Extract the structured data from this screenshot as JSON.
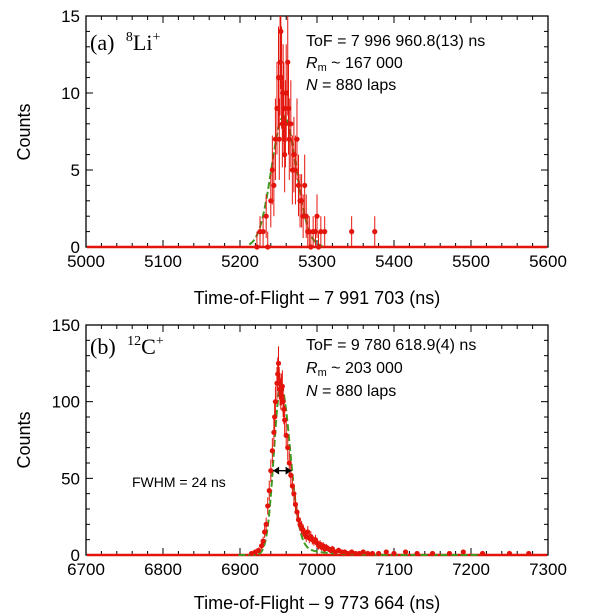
{
  "chart_data": [
    {
      "type": "scatter",
      "panel": "(a)",
      "isotope_mass": "8",
      "isotope_symbol": "Li",
      "isotope_charge": "+",
      "ylabel": "Counts",
      "xlabel": "Time-of-Flight – 7 991 703 (ns)",
      "xlim": [
        5000,
        5600
      ],
      "ylim": [
        0,
        15
      ],
      "xticks": [
        "5000",
        "5100",
        "5200",
        "5300",
        "5400",
        "5500",
        "5600"
      ],
      "yticks": [
        "0",
        "5",
        "10",
        "15"
      ],
      "info": {
        "tof": "ToF = 7 996 960.8(13) ns",
        "rm_symbol": "R",
        "rm_sub": "m",
        "rm_value": " ~ 167 000",
        "n_symbol": "N",
        "n_value": " = 880 laps"
      },
      "colors": {
        "points": "#e3140b",
        "fit": "#3d9a1f"
      },
      "fit": {
        "center": 5257,
        "sigma": 16,
        "amplitude": 8.5
      },
      "points": [
        [
          5222,
          0
        ],
        [
          5226,
          1
        ],
        [
          5230,
          1
        ],
        [
          5234,
          2
        ],
        [
          5236,
          0
        ],
        [
          5240,
          3
        ],
        [
          5242,
          5
        ],
        [
          5244,
          4
        ],
        [
          5246,
          7
        ],
        [
          5248,
          9
        ],
        [
          5250,
          11
        ],
        [
          5251,
          7
        ],
        [
          5252,
          12
        ],
        [
          5253,
          14
        ],
        [
          5254,
          11
        ],
        [
          5255,
          8
        ],
        [
          5256,
          10
        ],
        [
          5257,
          9
        ],
        [
          5258,
          6
        ],
        [
          5259,
          8
        ],
        [
          5260,
          10
        ],
        [
          5262,
          12
        ],
        [
          5263,
          9
        ],
        [
          5264,
          7
        ],
        [
          5266,
          8
        ],
        [
          5268,
          5
        ],
        [
          5270,
          6
        ],
        [
          5272,
          5
        ],
        [
          5274,
          7
        ],
        [
          5276,
          4
        ],
        [
          5278,
          3
        ],
        [
          5280,
          3
        ],
        [
          5282,
          2
        ],
        [
          5284,
          4
        ],
        [
          5286,
          2
        ],
        [
          5288,
          1
        ],
        [
          5290,
          1
        ],
        [
          5292,
          0
        ],
        [
          5295,
          1
        ],
        [
          5298,
          1
        ],
        [
          5300,
          2
        ],
        [
          5302,
          0
        ],
        [
          5305,
          1
        ],
        [
          5310,
          1
        ],
        [
          5345,
          1
        ],
        [
          5375,
          1
        ]
      ]
    },
    {
      "type": "scatter",
      "panel": "(b)",
      "isotope_mass": "12",
      "isotope_symbol": "C",
      "isotope_charge": "+",
      "ylabel": "Counts",
      "xlabel": "Time-of-Flight – 9 773 664 (ns)",
      "xlim": [
        6700,
        7300
      ],
      "ylim": [
        0,
        150
      ],
      "xticks": [
        "6700",
        "6800",
        "6900",
        "7000",
        "7100",
        "7200",
        "7300"
      ],
      "yticks": [
        "0",
        "50",
        "100",
        "150"
      ],
      "info": {
        "tof": "ToF = 9 780 618.9(4) ns",
        "rm_symbol": "R",
        "rm_sub": "m",
        "rm_value": " ~ 203 000",
        "n_symbol": "N",
        "n_value": " = 880 laps"
      },
      "annotation": "FWHM = 24 ns",
      "annotation_span": [
        6943,
        6967
      ],
      "annotation_y": 55,
      "colors": {
        "points": "#e3140b",
        "fit": "#3d9a1f"
      },
      "fit": {
        "center": 6953,
        "sigma_left": 9,
        "sigma_right": 12,
        "amplitude": 110,
        "tail_amplitude": 12,
        "tail_decay": 28
      },
      "points": [
        [
          6915,
          1
        ],
        [
          6920,
          2
        ],
        [
          6924,
          3
        ],
        [
          6928,
          6
        ],
        [
          6930,
          9
        ],
        [
          6932,
          15
        ],
        [
          6934,
          20
        ],
        [
          6936,
          32
        ],
        [
          6938,
          42
        ],
        [
          6940,
          55
        ],
        [
          6942,
          68
        ],
        [
          6944,
          80
        ],
        [
          6945,
          90
        ],
        [
          6946,
          100
        ],
        [
          6948,
          112
        ],
        [
          6949,
          118
        ],
        [
          6950,
          125
        ],
        [
          6951,
          112
        ],
        [
          6952,
          108
        ],
        [
          6953,
          105
        ],
        [
          6954,
          108
        ],
        [
          6955,
          110
        ],
        [
          6956,
          100
        ],
        [
          6957,
          95
        ],
        [
          6958,
          88
        ],
        [
          6960,
          78
        ],
        [
          6962,
          70
        ],
        [
          6964,
          60
        ],
        [
          6966,
          52
        ],
        [
          6968,
          45
        ],
        [
          6970,
          40
        ],
        [
          6972,
          33
        ],
        [
          6974,
          28
        ],
        [
          6976,
          23
        ],
        [
          6978,
          20
        ],
        [
          6980,
          18
        ],
        [
          6982,
          16
        ],
        [
          6984,
          14
        ],
        [
          6986,
          12
        ],
        [
          6988,
          15
        ],
        [
          6990,
          11
        ],
        [
          6992,
          12
        ],
        [
          6994,
          10
        ],
        [
          6996,
          9
        ],
        [
          6998,
          10
        ],
        [
          7000,
          8
        ],
        [
          7002,
          6
        ],
        [
          7004,
          7
        ],
        [
          7006,
          5
        ],
        [
          7008,
          6
        ],
        [
          7010,
          4
        ],
        [
          7012,
          5
        ],
        [
          7015,
          4
        ],
        [
          7018,
          3
        ],
        [
          7020,
          4
        ],
        [
          7024,
          2
        ],
        [
          7028,
          3
        ],
        [
          7032,
          2
        ],
        [
          7036,
          2
        ],
        [
          7040,
          1
        ],
        [
          7045,
          2
        ],
        [
          7050,
          1
        ],
        [
          7055,
          1
        ],
        [
          7060,
          2
        ],
        [
          7066,
          1
        ],
        [
          7072,
          1
        ],
        [
          7080,
          1
        ],
        [
          7090,
          2
        ],
        [
          7100,
          1
        ],
        [
          7115,
          2
        ],
        [
          7130,
          1
        ],
        [
          7150,
          1
        ],
        [
          7172,
          1
        ],
        [
          7190,
          2
        ],
        [
          7215,
          1
        ],
        [
          7250,
          1
        ],
        [
          7275,
          1
        ]
      ]
    }
  ]
}
